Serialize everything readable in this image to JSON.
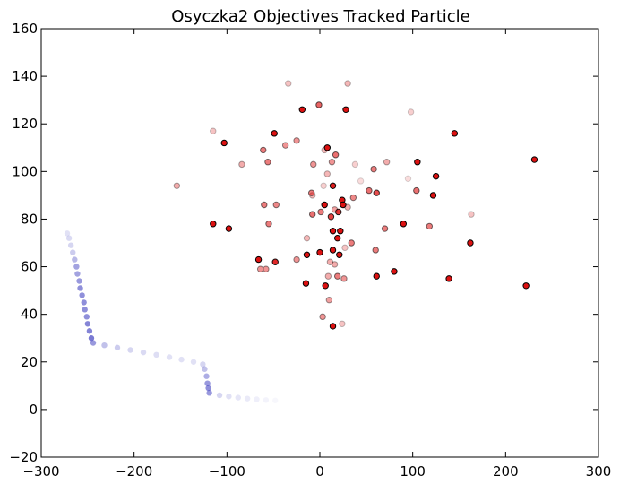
{
  "chart_data": {
    "type": "scatter",
    "title": "Osyczka2 Objectives Tracked Particle",
    "xlabel": "",
    "ylabel": "",
    "xlim": [
      -300,
      300
    ],
    "ylim": [
      -20,
      160
    ],
    "xticks": [
      "−300",
      "−200",
      "−100",
      "0",
      "100",
      "200",
      "300"
    ],
    "yticks": [
      "−20",
      "0",
      "20",
      "40",
      "60",
      "80",
      "100",
      "120",
      "140",
      "160"
    ],
    "xtick_values": [
      -300,
      -200,
      -100,
      0,
      100,
      200,
      300
    ],
    "ytick_values": [
      -20,
      0,
      20,
      40,
      60,
      80,
      100,
      120,
      140,
      160
    ],
    "grid": false,
    "legend": "none",
    "colors": {
      "swarm": "#dd1111",
      "tracked": "#3333bb"
    },
    "series": [
      {
        "points": [
          [
            -19,
            126,
            1.0
          ],
          [
            28,
            126,
            1.0
          ],
          [
            -49,
            116,
            1.0
          ],
          [
            145,
            116,
            1.0
          ],
          [
            -103,
            112,
            1.0
          ],
          [
            8,
            110,
            1.0
          ],
          [
            105,
            104,
            1.0
          ],
          [
            231,
            105,
            1.0
          ],
          [
            125,
            98,
            1.0
          ],
          [
            14,
            94,
            0.95
          ],
          [
            122,
            90,
            1.0
          ],
          [
            24,
            88,
            1.0
          ],
          [
            5,
            86,
            1.0
          ],
          [
            25,
            86,
            1.0
          ],
          [
            -115,
            78,
            1.0
          ],
          [
            -98,
            76,
            1.0
          ],
          [
            90,
            78,
            1.0
          ],
          [
            14,
            75,
            1.0
          ],
          [
            22,
            75,
            1.0
          ],
          [
            19,
            72,
            1.0
          ],
          [
            162,
            70,
            1.0
          ],
          [
            -66,
            63,
            1.0
          ],
          [
            14,
            67,
            1.0
          ],
          [
            0,
            66,
            1.0
          ],
          [
            21,
            65,
            1.0
          ],
          [
            -14,
            65,
            1.0
          ],
          [
            61,
            56,
            1.0
          ],
          [
            80,
            58,
            1.0
          ],
          [
            139,
            55,
            1.0
          ],
          [
            -15,
            53,
            1.0
          ],
          [
            6,
            52,
            1.0
          ],
          [
            222,
            52,
            1.0
          ],
          [
            14,
            35,
            1.0
          ],
          [
            -48,
            62,
            0.9
          ],
          [
            20,
            83,
            0.85
          ],
          [
            12,
            81,
            0.8
          ],
          [
            -34,
            137,
            0.25
          ],
          [
            30,
            137,
            0.3
          ],
          [
            98,
            125,
            0.2
          ],
          [
            -115,
            117,
            0.25
          ],
          [
            -1,
            128,
            0.65
          ],
          [
            -25,
            113,
            0.45
          ],
          [
            -37,
            111,
            0.45
          ],
          [
            -61,
            109,
            0.55
          ],
          [
            5,
            109,
            0.3
          ],
          [
            17,
            107,
            0.6
          ],
          [
            13,
            104,
            0.45
          ],
          [
            -56,
            104,
            0.55
          ],
          [
            -84,
            103,
            0.35
          ],
          [
            -7,
            103,
            0.45
          ],
          [
            58,
            101,
            0.55
          ],
          [
            72,
            104,
            0.35
          ],
          [
            38,
            103,
            0.2
          ],
          [
            8,
            99,
            0.3
          ],
          [
            -154,
            94,
            0.35
          ],
          [
            -9,
            91,
            0.55
          ],
          [
            53,
            92,
            0.6
          ],
          [
            61,
            91,
            0.75
          ],
          [
            104,
            92,
            0.6
          ],
          [
            36,
            89,
            0.5
          ],
          [
            -47,
            86,
            0.5
          ],
          [
            -60,
            86,
            0.55
          ],
          [
            16,
            84,
            0.4
          ],
          [
            -8,
            82,
            0.6
          ],
          [
            1,
            83,
            0.55
          ],
          [
            30,
            85,
            0.35
          ],
          [
            70,
            76,
            0.55
          ],
          [
            118,
            77,
            0.55
          ],
          [
            163,
            82,
            0.25
          ],
          [
            -55,
            78,
            0.55
          ],
          [
            -14,
            72,
            0.3
          ],
          [
            34,
            70,
            0.55
          ],
          [
            27,
            68,
            0.25
          ],
          [
            60,
            67,
            0.55
          ],
          [
            -25,
            63,
            0.45
          ],
          [
            11,
            62,
            0.35
          ],
          [
            -58,
            59,
            0.45
          ],
          [
            -64,
            59,
            0.45
          ],
          [
            16,
            61,
            0.35
          ],
          [
            9,
            56,
            0.35
          ],
          [
            19,
            56,
            0.55
          ],
          [
            26,
            55,
            0.45
          ],
          [
            10,
            46,
            0.4
          ],
          [
            3,
            39,
            0.45
          ],
          [
            24,
            36,
            0.25
          ],
          [
            -8,
            90,
            0.3
          ],
          [
            44,
            96,
            0.15
          ],
          [
            95,
            97,
            0.15
          ],
          [
            4,
            94,
            0.2
          ]
        ]
      },
      {
        "points": [
          [
            -272,
            74,
            0.15
          ],
          [
            -270,
            72,
            0.18
          ],
          [
            -268,
            69,
            0.2
          ],
          [
            -266,
            66,
            0.25
          ],
          [
            -264,
            63,
            0.35
          ],
          [
            -262,
            60,
            0.45
          ],
          [
            -261,
            57,
            0.45
          ],
          [
            -259,
            54,
            0.5
          ],
          [
            -258,
            51,
            0.55
          ],
          [
            -256,
            48,
            0.55
          ],
          [
            -254,
            45,
            0.55
          ],
          [
            -253,
            42,
            0.55
          ],
          [
            -251,
            39,
            0.55
          ],
          [
            -250,
            36,
            0.6
          ],
          [
            -248,
            33,
            0.6
          ],
          [
            -246,
            30,
            0.65
          ],
          [
            -244,
            28,
            0.5
          ],
          [
            -232,
            27,
            0.3
          ],
          [
            -218,
            26,
            0.25
          ],
          [
            -204,
            25,
            0.2
          ],
          [
            -190,
            24,
            0.18
          ],
          [
            -176,
            23,
            0.16
          ],
          [
            -162,
            22,
            0.15
          ],
          [
            -149,
            21,
            0.15
          ],
          [
            -136,
            20,
            0.15
          ],
          [
            -126,
            19,
            0.2
          ],
          [
            -124,
            17,
            0.3
          ],
          [
            -122,
            14,
            0.4
          ],
          [
            -121,
            11,
            0.5
          ],
          [
            -120,
            9,
            0.55
          ],
          [
            -119,
            7,
            0.5
          ],
          [
            -108,
            6,
            0.2
          ],
          [
            -98,
            5.5,
            0.15
          ],
          [
            -88,
            5,
            0.12
          ],
          [
            -78,
            4.6,
            0.1
          ],
          [
            -68,
            4.3,
            0.08
          ],
          [
            -58,
            4,
            0.06
          ],
          [
            -48,
            3.8,
            0.04
          ]
        ]
      }
    ]
  }
}
